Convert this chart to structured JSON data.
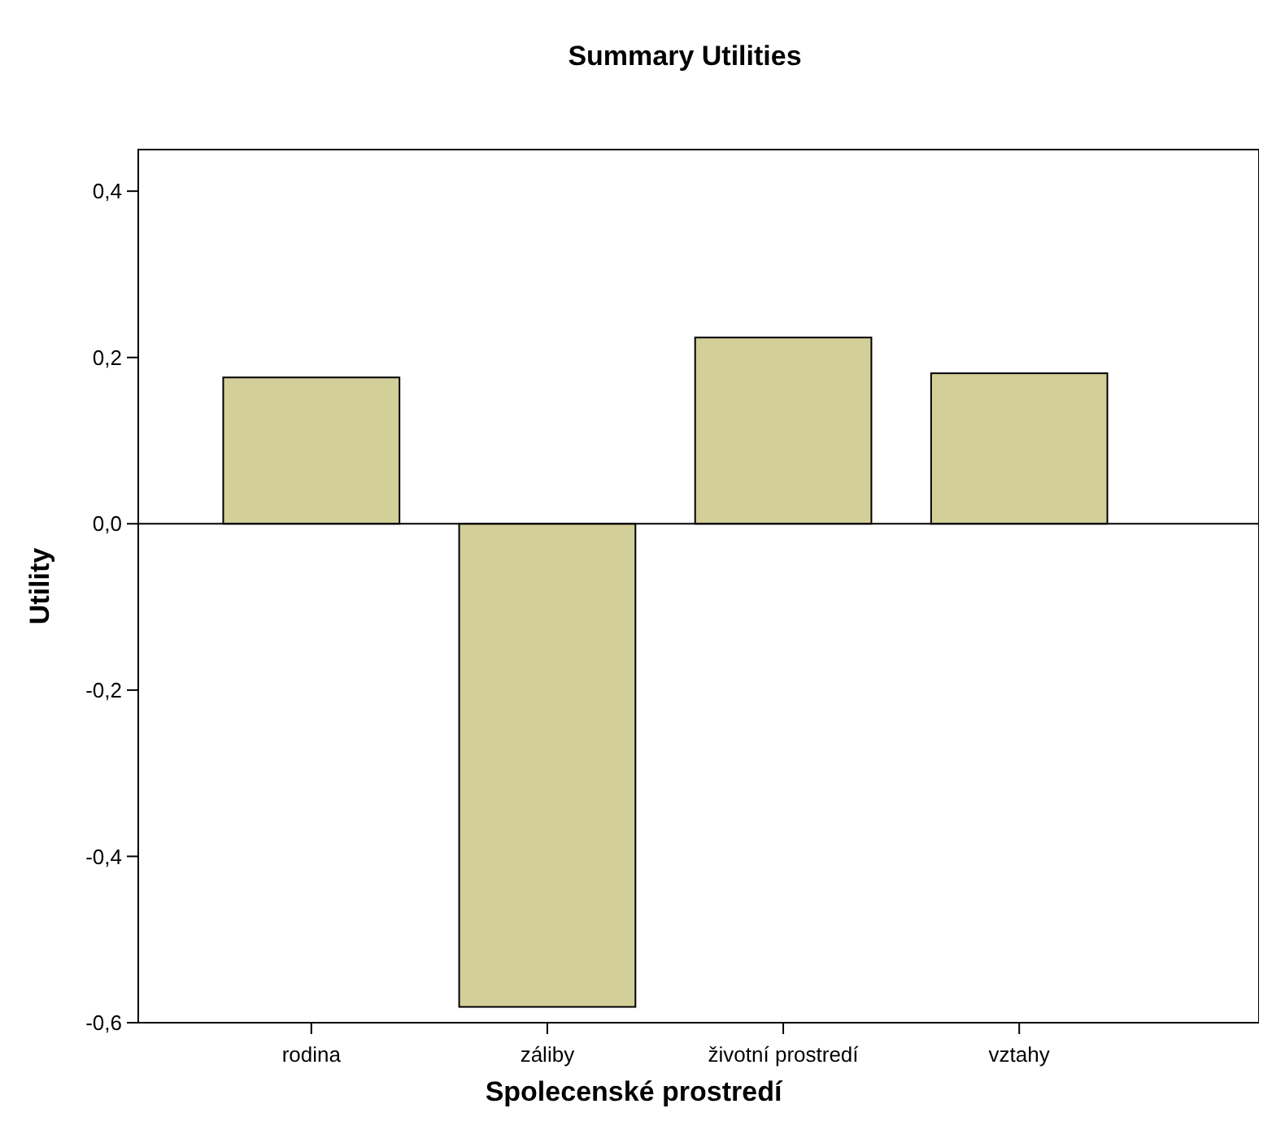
{
  "chart_data": {
    "type": "bar",
    "title": "Summary Utilities",
    "xlabel": "Spolecenské prostredí",
    "ylabel": "Utility",
    "categories": [
      "rodina",
      "záliby",
      "životní prostredí",
      "vztahy"
    ],
    "values": [
      0.176,
      -0.581,
      0.224,
      0.181
    ],
    "color": "#d3cf98",
    "ylim": [
      -0.6,
      0.45
    ],
    "yticks": [
      {
        "value": -0.6,
        "label": "-0,6"
      },
      {
        "value": -0.4,
        "label": "-0,4"
      },
      {
        "value": -0.2,
        "label": "-0,2"
      },
      {
        "value": 0,
        "label": "0,0"
      },
      {
        "value": 0.2,
        "label": "0,2"
      },
      {
        "value": 0.4,
        "label": "0,4"
      }
    ],
    "ref_lines": [
      {
        "axis": "y",
        "value": 0,
        "color": "#000000"
      }
    ],
    "grid": false
  }
}
